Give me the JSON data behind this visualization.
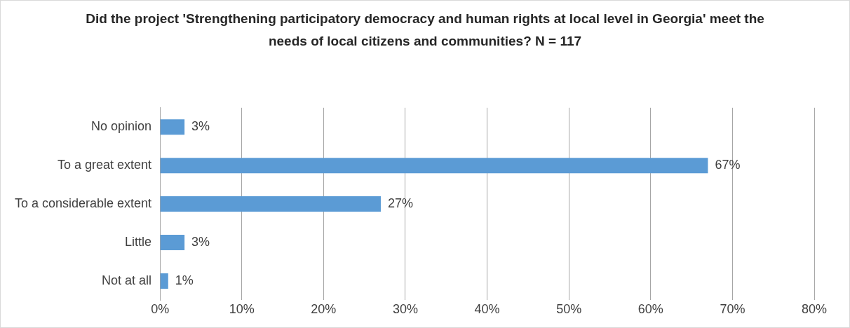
{
  "chart_data": {
    "type": "bar",
    "orientation": "horizontal",
    "title": "Did the project 'Strengthening participatory democracy and human rights at local level in Georgia' meet the needs of local citizens and communities? N = 117",
    "categories": [
      "No opinion",
      "To a great extent",
      "To a considerable extent",
      "Little",
      "Not at all"
    ],
    "values": [
      3,
      67,
      27,
      3,
      1
    ],
    "value_labels": [
      "3%",
      "67%",
      "27%",
      "3%",
      "1%"
    ],
    "color": "#5b9bd5",
    "xlim": [
      0,
      80
    ],
    "xticks": [
      {
        "value": 0,
        "label": "0%"
      },
      {
        "value": 10,
        "label": "10%"
      },
      {
        "value": 20,
        "label": "20%"
      },
      {
        "value": 30,
        "label": "30%"
      },
      {
        "value": 40,
        "label": "40%"
      },
      {
        "value": 50,
        "label": "50%"
      },
      {
        "value": 60,
        "label": "60%"
      },
      {
        "value": 70,
        "label": "70%"
      },
      {
        "value": 80,
        "label": "80%"
      }
    ],
    "grid": "x",
    "legend": false
  }
}
